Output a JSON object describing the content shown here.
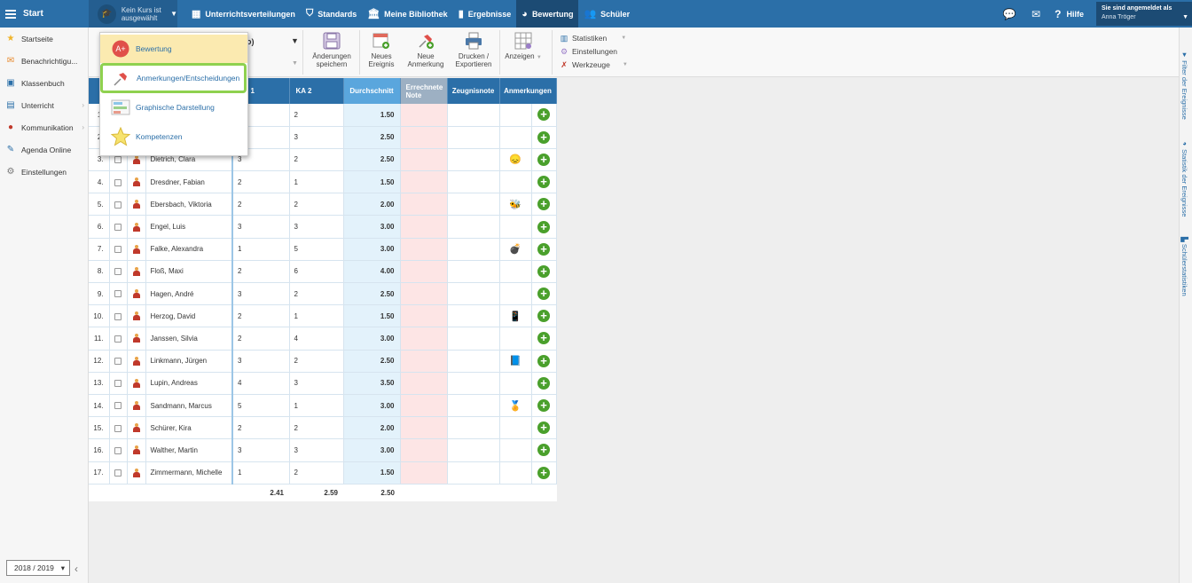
{
  "topbar": {
    "start_label": "Start",
    "course_label": "Kein Kurs ist ausgewählt",
    "nav": [
      {
        "label": "Unterrichtsverteilungen",
        "icon": "calendar-icon"
      },
      {
        "label": "Standards",
        "icon": "shield-icon"
      },
      {
        "label": "Meine Bibliothek",
        "icon": "library-icon"
      },
      {
        "label": "Ergebnisse",
        "icon": "bar-chart-icon"
      },
      {
        "label": "Bewertung",
        "icon": "grade-icon"
      },
      {
        "label": "Schüler",
        "icon": "students-icon"
      }
    ],
    "help_label": "Hilfe",
    "user_line1": "Sie sind angemeldet als",
    "user_line2": "Anna Tröger"
  },
  "sidebar": {
    "items": [
      {
        "label": "Startseite",
        "icon": "star-icon"
      },
      {
        "label": "Benachrichtigu...",
        "icon": "mail-icon"
      },
      {
        "label": "Klassenbuch",
        "icon": "book-icon"
      },
      {
        "label": "Unterricht",
        "icon": "briefcase-icon"
      },
      {
        "label": "Kommunikation",
        "icon": "chat-icon"
      },
      {
        "label": "Agenda Online",
        "icon": "pen-icon"
      },
      {
        "label": "Einstellungen",
        "icon": "gear-icon"
      }
    ],
    "year": "2018 / 2019"
  },
  "toolbar": {
    "partial_select": "o)",
    "buttons": [
      {
        "label": "Änderungen speichern",
        "icon": "save-icon"
      },
      {
        "label": "Neues Ereignis",
        "icon": "new-event-icon"
      },
      {
        "label": "Neue Anmerkung",
        "icon": "new-note-icon"
      },
      {
        "label": "Drucken / Exportieren",
        "icon": "print-icon"
      },
      {
        "label": "Anzeigen",
        "icon": "grid-view-icon"
      }
    ],
    "menu": [
      {
        "label": "Statistiken",
        "icon": "stats-icon"
      },
      {
        "label": "Einstellungen",
        "icon": "settings-icon"
      },
      {
        "label": "Werkzeuge",
        "icon": "tools-icon"
      }
    ]
  },
  "rightpanel": {
    "items": [
      "Filter der Ereignisse",
      "Statistik der Ereignisse",
      "Schülerstatistiken"
    ]
  },
  "dropdown": {
    "items": [
      {
        "label": "Bewertung",
        "icon": "grade-badge-icon"
      },
      {
        "label": "Anmerkungen/Entscheidungen",
        "icon": "pushpin-icon"
      },
      {
        "label": "Graphische Darstellung",
        "icon": "chart-icon"
      },
      {
        "label": "Kompetenzen",
        "icon": "star-icon"
      }
    ]
  },
  "table": {
    "headers": {
      "ka1": "1",
      "ka2": "KA 2",
      "avg": "Durchschnitt",
      "calc": "Errechnete Note",
      "report": "Zeugnisnote",
      "notes": "Anmerkungen"
    },
    "rows": [
      {
        "n": "1.",
        "name": "",
        "ka1": "",
        "ka2": "2",
        "avg": "1.50",
        "annot": ""
      },
      {
        "n": "2.",
        "name": "",
        "ka1": "",
        "ka2": "3",
        "avg": "2.50",
        "annot": ""
      },
      {
        "n": "3.",
        "name": "Dietrich, Clara",
        "ka1": "3",
        "ka2": "2",
        "avg": "2.50",
        "annot": "😞"
      },
      {
        "n": "4.",
        "name": "Dresdner, Fabian",
        "ka1": "2",
        "ka2": "1",
        "avg": "1.50",
        "annot": ""
      },
      {
        "n": "5.",
        "name": "Ebersbach, Viktoria",
        "ka1": "2",
        "ka2": "2",
        "avg": "2.00",
        "annot": "🐝"
      },
      {
        "n": "6.",
        "name": "Engel, Luis",
        "ka1": "3",
        "ka2": "3",
        "avg": "3.00",
        "annot": ""
      },
      {
        "n": "7.",
        "name": "Falke, Alexandra",
        "ka1": "1",
        "ka2": "5",
        "avg": "3.00",
        "annot": "💣"
      },
      {
        "n": "8.",
        "name": "Floß, Maxi",
        "ka1": "2",
        "ka2": "6",
        "avg": "4.00",
        "annot": ""
      },
      {
        "n": "9.",
        "name": "Hagen, André",
        "ka1": "3",
        "ka2": "2",
        "avg": "2.50",
        "annot": ""
      },
      {
        "n": "10.",
        "name": "Herzog, David",
        "ka1": "2",
        "ka2": "1",
        "avg": "1.50",
        "annot": "📱"
      },
      {
        "n": "11.",
        "name": "Janssen, Silvia",
        "ka1": "2",
        "ka2": "4",
        "avg": "3.00",
        "annot": ""
      },
      {
        "n": "12.",
        "name": "Linkmann, Jürgen",
        "ka1": "3",
        "ka2": "2",
        "avg": "2.50",
        "annot": "📘"
      },
      {
        "n": "13.",
        "name": "Lupin, Andreas",
        "ka1": "4",
        "ka2": "3",
        "avg": "3.50",
        "annot": ""
      },
      {
        "n": "14.",
        "name": "Sandmann, Marcus",
        "ka1": "5",
        "ka2": "1",
        "avg": "3.00",
        "annot": "🏅"
      },
      {
        "n": "15.",
        "name": "Schürer, Kira",
        "ka1": "2",
        "ka2": "2",
        "avg": "2.00",
        "annot": ""
      },
      {
        "n": "16.",
        "name": "Walther, Martin",
        "ka1": "3",
        "ka2": "3",
        "avg": "3.00",
        "annot": ""
      },
      {
        "n": "17.",
        "name": "Zimmermann, Michelle",
        "ka1": "1",
        "ka2": "2",
        "avg": "1.50",
        "annot": ""
      }
    ],
    "totals": {
      "ka1": "2.41",
      "ka2": "2.59",
      "avg": "2.50"
    }
  }
}
